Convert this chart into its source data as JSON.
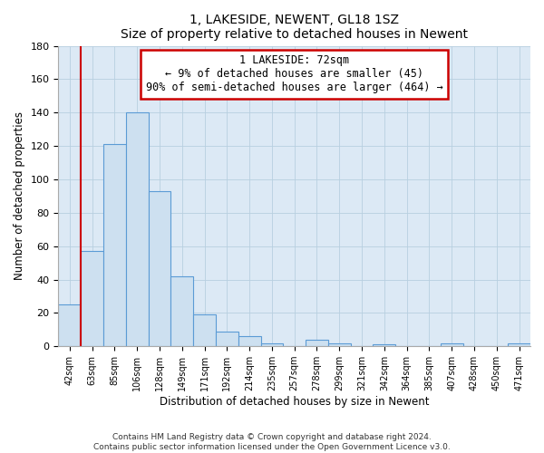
{
  "title": "1, LAKESIDE, NEWENT, GL18 1SZ",
  "subtitle": "Size of property relative to detached houses in Newent",
  "xlabel": "Distribution of detached houses by size in Newent",
  "ylabel": "Number of detached properties",
  "bar_labels": [
    "42sqm",
    "63sqm",
    "85sqm",
    "106sqm",
    "128sqm",
    "149sqm",
    "171sqm",
    "192sqm",
    "214sqm",
    "235sqm",
    "257sqm",
    "278sqm",
    "299sqm",
    "321sqm",
    "342sqm",
    "364sqm",
    "385sqm",
    "407sqm",
    "428sqm",
    "450sqm",
    "471sqm"
  ],
  "bar_values": [
    25,
    57,
    121,
    140,
    93,
    42,
    19,
    9,
    6,
    2,
    0,
    4,
    2,
    0,
    1,
    0,
    0,
    2,
    0,
    0,
    2
  ],
  "bar_color": "#cde0f0",
  "bar_edge_color": "#5b9bd5",
  "ylim": [
    0,
    180
  ],
  "yticks": [
    0,
    20,
    40,
    60,
    80,
    100,
    120,
    140,
    160,
    180
  ],
  "vline_color": "#cc0000",
  "annotation_title": "1 LAKESIDE: 72sqm",
  "annotation_line1": "← 9% of detached houses are smaller (45)",
  "annotation_line2": "90% of semi-detached houses are larger (464) →",
  "annotation_box_color": "#ffffff",
  "annotation_box_edge": "#cc0000",
  "footer1": "Contains HM Land Registry data © Crown copyright and database right 2024.",
  "footer2": "Contains public sector information licensed under the Open Government Licence v3.0.",
  "background_color": "#ffffff",
  "plot_bg_color": "#dce9f5"
}
